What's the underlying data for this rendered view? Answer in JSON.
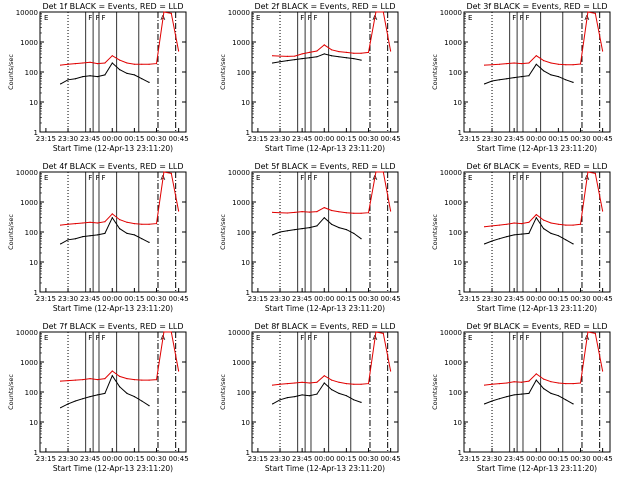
{
  "figure": {
    "start_time_label": "Start Time (12-Apr-13 23:11:20)",
    "ylabel": "Counts/sec",
    "x_tick_labels": [
      "23:15",
      "23:30",
      "23:45",
      "00:00",
      "00:15",
      "00:30",
      "00:45"
    ],
    "y_tick_labels": [
      "1",
      "10",
      "100",
      "1000",
      "10000"
    ],
    "flag_labels": [
      "E",
      "F",
      "F",
      "F",
      "A"
    ],
    "colors": {
      "events": "#000000",
      "lld": "#e00000",
      "axis": "#000000"
    }
  },
  "chart_data": [
    {
      "type": "line",
      "title": "Det 1f BLACK = Events, RED = LLD",
      "xlabel": "Start Time (12-Apr-13 23:11:20)",
      "ylabel": "Counts/sec",
      "ylim": [
        1,
        10000
      ],
      "y_scale": "log",
      "x": [
        "23:15",
        "23:20",
        "23:25",
        "23:30",
        "23:35",
        "23:40",
        "23:45",
        "23:50",
        "23:55",
        "00:00",
        "00:05",
        "00:10",
        "00:15",
        "00:20",
        "00:25",
        "00:30",
        "00:35",
        "00:40",
        "00:45"
      ],
      "series": [
        {
          "name": "Events",
          "values": [
            null,
            null,
            40,
            55,
            60,
            70,
            75,
            70,
            80,
            200,
            120,
            90,
            80,
            60,
            45,
            null,
            null,
            null,
            null
          ]
        },
        {
          "name": "LLD",
          "values": [
            null,
            null,
            170,
            180,
            190,
            200,
            210,
            190,
            200,
            350,
            250,
            200,
            180,
            180,
            180,
            190,
            12000,
            9000,
            500
          ]
        }
      ]
    },
    {
      "type": "line",
      "title": "Det 2f BLACK = Events, RED = LLD",
      "xlabel": "Start Time (12-Apr-13 23:11:20)",
      "ylabel": "Counts/sec",
      "ylim": [
        1,
        10000
      ],
      "y_scale": "log",
      "x": [
        "23:15",
        "23:20",
        "23:25",
        "23:30",
        "23:35",
        "23:40",
        "23:45",
        "23:50",
        "23:55",
        "00:00",
        "00:05",
        "00:10",
        "00:15",
        "00:20",
        "00:25",
        "00:30",
        "00:35",
        "00:40",
        "00:45"
      ],
      "series": [
        {
          "name": "Events",
          "values": [
            null,
            null,
            200,
            220,
            240,
            260,
            280,
            300,
            320,
            400,
            350,
            320,
            300,
            280,
            250,
            null,
            null,
            null,
            null
          ]
        },
        {
          "name": "LLD",
          "values": [
            null,
            null,
            350,
            340,
            330,
            340,
            400,
            450,
            500,
            800,
            550,
            480,
            450,
            420,
            420,
            450,
            12000,
            10000,
            500
          ]
        }
      ]
    },
    {
      "type": "line",
      "title": "Det 3f BLACK = Events, RED = LLD",
      "xlabel": "Start Time (12-Apr-13 23:11:20)",
      "ylabel": "Counts/sec",
      "ylim": [
        1,
        10000
      ],
      "y_scale": "log",
      "x": [
        "23:15",
        "23:20",
        "23:25",
        "23:30",
        "23:35",
        "23:40",
        "23:45",
        "23:50",
        "23:55",
        "00:00",
        "00:05",
        "00:10",
        "00:15",
        "00:20",
        "00:25",
        "00:30",
        "00:35",
        "00:40",
        "00:45"
      ],
      "series": [
        {
          "name": "Events",
          "values": [
            null,
            null,
            40,
            50,
            55,
            60,
            65,
            70,
            75,
            180,
            110,
            80,
            70,
            55,
            45,
            null,
            null,
            null,
            null
          ]
        },
        {
          "name": "LLD",
          "values": [
            null,
            null,
            170,
            175,
            180,
            190,
            200,
            190,
            200,
            350,
            240,
            200,
            180,
            175,
            175,
            185,
            12000,
            9000,
            500
          ]
        }
      ]
    },
    {
      "type": "line",
      "title": "Det 4f BLACK = Events, RED = LLD",
      "xlabel": "Start Time (12-Apr-13 23:11:20)",
      "ylabel": "Counts/sec",
      "ylim": [
        1,
        10000
      ],
      "y_scale": "log",
      "x": [
        "23:15",
        "23:20",
        "23:25",
        "23:30",
        "23:35",
        "23:40",
        "23:45",
        "23:50",
        "23:55",
        "00:00",
        "00:05",
        "00:10",
        "00:15",
        "00:20",
        "00:25",
        "00:30",
        "00:35",
        "00:40",
        "00:45"
      ],
      "series": [
        {
          "name": "Events",
          "values": [
            null,
            null,
            40,
            55,
            60,
            70,
            75,
            80,
            90,
            300,
            130,
            90,
            80,
            60,
            45,
            null,
            null,
            null,
            null
          ]
        },
        {
          "name": "LLD",
          "values": [
            null,
            null,
            170,
            180,
            190,
            200,
            210,
            200,
            220,
            400,
            260,
            210,
            190,
            180,
            180,
            190,
            12000,
            9000,
            500
          ]
        }
      ]
    },
    {
      "type": "line",
      "title": "Det 5f BLACK = Events, RED = LLD",
      "xlabel": "Start Time (12-Apr-13 23:11:20)",
      "ylabel": "Counts/sec",
      "ylim": [
        1,
        10000
      ],
      "y_scale": "log",
      "x": [
        "23:15",
        "23:20",
        "23:25",
        "23:30",
        "23:35",
        "23:40",
        "23:45",
        "23:50",
        "23:55",
        "00:00",
        "00:05",
        "00:10",
        "00:15",
        "00:20",
        "00:25",
        "00:30",
        "00:35",
        "00:40",
        "00:45"
      ],
      "series": [
        {
          "name": "Events",
          "values": [
            null,
            null,
            80,
            100,
            110,
            120,
            130,
            140,
            160,
            300,
            180,
            140,
            120,
            90,
            60,
            null,
            null,
            null,
            null
          ]
        },
        {
          "name": "LLD",
          "values": [
            null,
            null,
            450,
            440,
            430,
            450,
            480,
            460,
            480,
            650,
            520,
            470,
            440,
            420,
            420,
            440,
            12000,
            10000,
            500
          ]
        }
      ]
    },
    {
      "type": "line",
      "title": "Det 6f BLACK = Events, RED = LLD",
      "xlabel": "Start Time (12-Apr-13 23:11:20)",
      "ylabel": "Counts/sec",
      "ylim": [
        1,
        10000
      ],
      "y_scale": "log",
      "x": [
        "23:15",
        "23:20",
        "23:25",
        "23:30",
        "23:35",
        "23:40",
        "23:45",
        "23:50",
        "23:55",
        "00:00",
        "00:05",
        "00:10",
        "00:15",
        "00:20",
        "00:25",
        "00:30",
        "00:35",
        "00:40",
        "00:45"
      ],
      "series": [
        {
          "name": "Events",
          "values": [
            null,
            null,
            40,
            50,
            60,
            70,
            80,
            85,
            90,
            300,
            130,
            90,
            75,
            55,
            40,
            null,
            null,
            null,
            null
          ]
        },
        {
          "name": "LLD",
          "values": [
            null,
            null,
            150,
            160,
            170,
            180,
            200,
            190,
            210,
            380,
            250,
            200,
            180,
            170,
            170,
            180,
            12000,
            9000,
            500
          ]
        }
      ]
    },
    {
      "type": "line",
      "title": "Det 7f BLACK = Events, RED = LLD",
      "xlabel": "Start Time (12-Apr-13 23:11:20)",
      "ylabel": "Counts/sec",
      "ylim": [
        1,
        10000
      ],
      "y_scale": "log",
      "x": [
        "23:15",
        "23:20",
        "23:25",
        "23:30",
        "23:35",
        "23:40",
        "23:45",
        "23:50",
        "23:55",
        "00:00",
        "00:05",
        "00:10",
        "00:15",
        "00:20",
        "00:25",
        "00:30",
        "00:35",
        "00:40",
        "00:45"
      ],
      "series": [
        {
          "name": "Events",
          "values": [
            null,
            null,
            30,
            40,
            50,
            60,
            70,
            80,
            90,
            350,
            150,
            90,
            70,
            50,
            35,
            null,
            null,
            null,
            null
          ]
        },
        {
          "name": "LLD",
          "values": [
            null,
            null,
            230,
            240,
            250,
            260,
            280,
            260,
            280,
            500,
            330,
            280,
            260,
            250,
            250,
            260,
            12000,
            10000,
            500
          ]
        }
      ]
    },
    {
      "type": "line",
      "title": "Det 8f BLACK = Events, RED = LLD",
      "xlabel": "Start Time (12-Apr-13 23:11:20)",
      "ylabel": "Counts/sec",
      "ylim": [
        1,
        10000
      ],
      "y_scale": "log",
      "x": [
        "23:15",
        "23:20",
        "23:25",
        "23:30",
        "23:35",
        "23:40",
        "23:45",
        "23:50",
        "23:55",
        "00:00",
        "00:05",
        "00:10",
        "00:15",
        "00:20",
        "00:25",
        "00:30",
        "00:35",
        "00:40",
        "00:45"
      ],
      "series": [
        {
          "name": "Events",
          "values": [
            null,
            null,
            40,
            55,
            65,
            70,
            80,
            75,
            85,
            200,
            120,
            90,
            75,
            55,
            45,
            null,
            null,
            null,
            null
          ]
        },
        {
          "name": "LLD",
          "values": [
            null,
            null,
            170,
            180,
            190,
            200,
            210,
            200,
            210,
            350,
            250,
            210,
            190,
            180,
            180,
            190,
            12000,
            9000,
            500
          ]
        }
      ]
    },
    {
      "type": "line",
      "title": "Det 9f BLACK = Events, RED = LLD",
      "xlabel": "Start Time (12-Apr-13 23:11:20)",
      "ylabel": "Counts/sec",
      "ylim": [
        1,
        10000
      ],
      "y_scale": "log",
      "x": [
        "23:15",
        "23:20",
        "23:25",
        "23:30",
        "23:35",
        "23:40",
        "23:45",
        "23:50",
        "23:55",
        "00:00",
        "00:05",
        "00:10",
        "00:15",
        "00:20",
        "00:25",
        "00:30",
        "00:35",
        "00:40",
        "00:45"
      ],
      "series": [
        {
          "name": "Events",
          "values": [
            null,
            null,
            40,
            50,
            60,
            70,
            80,
            85,
            90,
            250,
            130,
            90,
            75,
            55,
            40,
            null,
            null,
            null,
            null
          ]
        },
        {
          "name": "LLD",
          "values": [
            null,
            null,
            170,
            180,
            190,
            200,
            220,
            210,
            230,
            400,
            270,
            220,
            200,
            190,
            190,
            200,
            12000,
            9000,
            500
          ]
        }
      ]
    }
  ]
}
